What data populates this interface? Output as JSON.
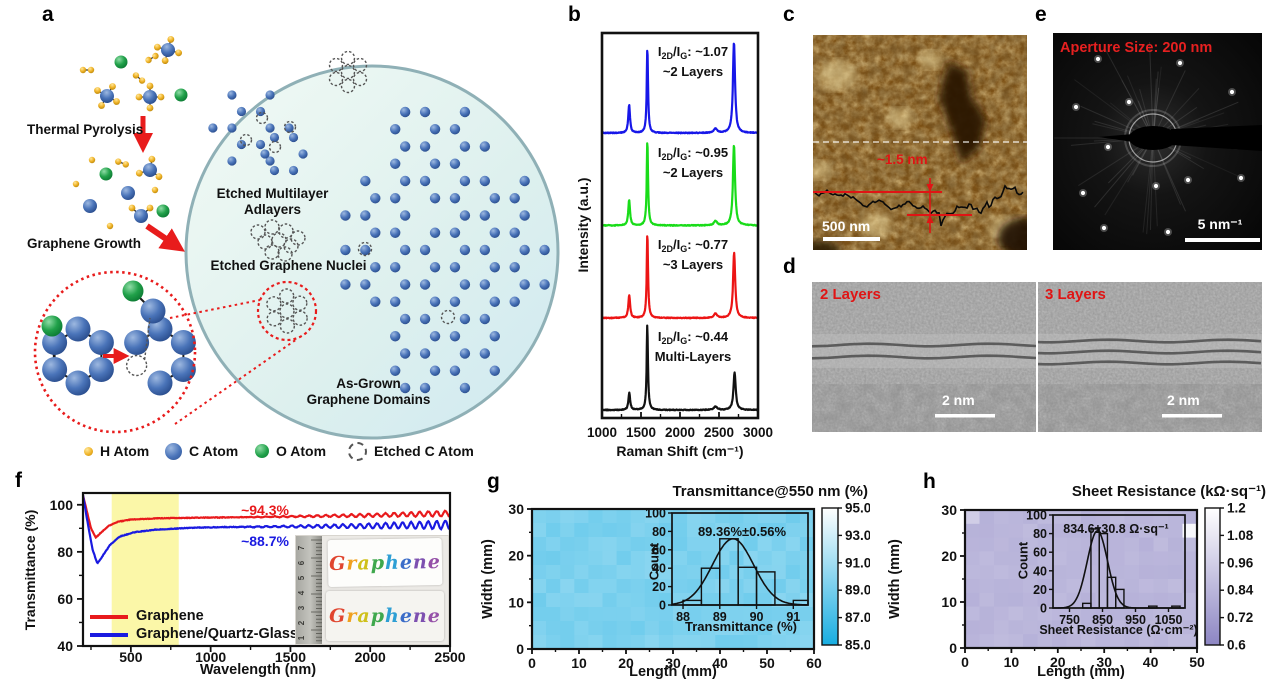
{
  "panels": {
    "a": {
      "label": "a",
      "thermal_pyrolysis": "Thermal Pyrolysis",
      "graphene_growth": "Graphene Growth",
      "etched_multilayer_line1": "Etched Multilayer",
      "etched_multilayer_line2": "Adlayers",
      "etched_nuclei": "Etched Graphene Nuclei",
      "as_grown_line1": "As-Grown",
      "as_grown_line2": "Graphene Domains",
      "legend": [
        {
          "name": "h-atom",
          "label": "H Atom"
        },
        {
          "name": "c-atom",
          "label": "C Atom"
        },
        {
          "name": "o-atom",
          "label": "O Atom"
        },
        {
          "name": "etched-c-atom",
          "label": "Etched C Atom"
        }
      ],
      "colors": {
        "c_atom": "#4a74b9",
        "o_atom": "#21a14a",
        "h_atom": "#f0b429",
        "red_accent": "#e81c1c"
      }
    },
    "b": {
      "label": "b"
    },
    "c": {
      "label": "c",
      "height_annotation": "~1.5 nm",
      "scale_bar": "500 nm"
    },
    "d": {
      "label": "d",
      "left_title": "2 Layers",
      "right_title": "3 Layers",
      "scale_bar_left": "2 nm",
      "scale_bar_right": "2 nm"
    },
    "e": {
      "label": "e",
      "aperture_label": "Aperture Size: 200 nm",
      "scale_bar": "5 nm⁻¹"
    },
    "f": {
      "label": "f",
      "photo": {
        "slide_text": "Graphene",
        "ruler_numbers": [
          "1",
          "2",
          "3",
          "4",
          "5",
          "6",
          "7"
        ],
        "letter_colors": [
          "#e0452f",
          "#f0a01e",
          "#cfc01a",
          "#3fa84d",
          "#2e9fd4",
          "#3a6cc8",
          "#7d50b0",
          "#9550a8"
        ]
      }
    },
    "g": {
      "label": "g"
    },
    "h": {
      "label": "h"
    }
  },
  "chart_data": [
    {
      "id": "raman-spectra",
      "panel": "b",
      "type": "line",
      "xlabel": "Raman Shift (cm⁻¹)",
      "ylabel": "Intensity (a.u.)",
      "xlim": [
        1000,
        3000
      ],
      "xticks": [
        1000,
        1500,
        2000,
        2500,
        3000
      ],
      "label_parts": {
        "i": "I",
        "sub_2d": "2D",
        "slash": "/I",
        "sub_g": "G",
        "colon": ": "
      },
      "series": [
        {
          "name": "2-layers-blue",
          "color": "#1717e8",
          "ratio": "~1.07",
          "layers": "~2 Layers",
          "peaks": [
            [
              1348,
              0.33,
              13
            ],
            [
              1582,
              1.0,
              10
            ],
            [
              2455,
              0.05,
              25
            ],
            [
              2692,
              1.07,
              16
            ]
          ]
        },
        {
          "name": "2-layers-green",
          "color": "#19dc19",
          "ratio": "~0.95",
          "layers": "~2 Layers",
          "peaks": [
            [
              1348,
              0.3,
              13
            ],
            [
              1582,
              1.0,
              10
            ],
            [
              2455,
              0.05,
              25
            ],
            [
              2692,
              0.95,
              16
            ]
          ]
        },
        {
          "name": "3-layers-red",
          "color": "#ec1515",
          "ratio": "~0.77",
          "layers": "~3 Layers",
          "peaks": [
            [
              1349,
              0.27,
              13
            ],
            [
              1582,
              1.0,
              10
            ],
            [
              2455,
              0.05,
              25
            ],
            [
              2694,
              0.77,
              16
            ]
          ]
        },
        {
          "name": "multi-layers-black",
          "color": "#121212",
          "ratio": "~0.44",
          "layers": "Multi-Layers",
          "peaks": [
            [
              1350,
              0.2,
              13
            ],
            [
              1581,
              1.0,
              10
            ],
            [
              2455,
              0.04,
              25
            ],
            [
              2700,
              0.44,
              17
            ]
          ]
        }
      ]
    },
    {
      "id": "uv-vis-transmittance",
      "panel": "f",
      "type": "line",
      "xlabel": "Wavelength (nm)",
      "ylabel": "Transmittance (%)",
      "xlim": [
        200,
        2500
      ],
      "ylim": [
        40,
        105
      ],
      "xticks": [
        500,
        1000,
        1500,
        2000,
        2500
      ],
      "yticks": [
        100,
        80,
        60,
        40
      ],
      "visible_band_nm": [
        380,
        800
      ],
      "series": [
        {
          "name": "Graphene",
          "color": "#e81a1c",
          "value_label": "~94.3%",
          "ripple": 1.2,
          "points": [
            [
              200,
              104
            ],
            [
              225,
              97
            ],
            [
              250,
              90
            ],
            [
              280,
              86
            ],
            [
              310,
              88
            ],
            [
              360,
              91
            ],
            [
              420,
              92.8
            ],
            [
              500,
              93.7
            ],
            [
              650,
              94.2
            ],
            [
              900,
              94.5
            ],
            [
              1200,
              94.7
            ],
            [
              1600,
              95.1
            ],
            [
              2000,
              95.5
            ],
            [
              2300,
              96.0
            ],
            [
              2500,
              96.3
            ]
          ]
        },
        {
          "name": "Graphene/Quartz-Glass",
          "color": "#1a1ae0",
          "value_label": "~88.7%",
          "ripple": 1.8,
          "points": [
            [
              200,
              104
            ],
            [
              230,
              92
            ],
            [
              260,
              81
            ],
            [
              290,
              75
            ],
            [
              320,
              78
            ],
            [
              370,
              83
            ],
            [
              430,
              86.5
            ],
            [
              520,
              88.3
            ],
            [
              650,
              89.4
            ],
            [
              900,
              90.3
            ],
            [
              1200,
              90.6
            ],
            [
              1600,
              90.8
            ],
            [
              2000,
              91.0
            ],
            [
              2300,
              91.3
            ],
            [
              2500,
              91.5
            ]
          ]
        }
      ]
    },
    {
      "id": "transmittance-map",
      "panel": "g",
      "type": "heatmap",
      "title": "Transmittance@550 nm (%)",
      "xlabel": "Length (mm)",
      "ylabel": "Width (mm)",
      "xlim": [
        0,
        60
      ],
      "ylim": [
        0,
        30
      ],
      "xticks": [
        0,
        10,
        20,
        30,
        40,
        50,
        60
      ],
      "yticks": [
        0,
        10,
        20,
        30
      ],
      "grid": {
        "cols": 20,
        "rows": 10
      },
      "mean": 89.36,
      "noise": 1.1,
      "outliers": [],
      "colorbar": {
        "min": 85,
        "max": 95,
        "tick_labels": [
          "95.00",
          "93.00",
          "91.00",
          "89.00",
          "87.00",
          "85.00"
        ],
        "low_color": "#18ade1",
        "high_color": "#ffffff"
      },
      "inset": {
        "stat_label": "89.36%±0.56%",
        "xlabel": "Transmittance (%)",
        "ylabel": "Count",
        "xlim": [
          87.7,
          91.4
        ],
        "ylim": [
          0,
          100
        ],
        "xticks": [
          88,
          89,
          90,
          91
        ],
        "yticks": [
          0,
          20,
          40,
          60,
          80,
          100
        ],
        "bin_width": 0.5,
        "bins": [
          {
            "x": 88.0,
            "count": 5
          },
          {
            "x": 88.5,
            "count": 40
          },
          {
            "x": 89.0,
            "count": 72
          },
          {
            "x": 89.5,
            "count": 41
          },
          {
            "x": 90.0,
            "count": 36
          },
          {
            "x": 91.0,
            "count": 5
          }
        ],
        "gaussian": {
          "mean": 89.36,
          "sd": 0.56,
          "peak": 72
        }
      }
    },
    {
      "id": "sheet-resistance-map",
      "panel": "h",
      "type": "heatmap",
      "title": "Sheet Resistance (kΩ·sq⁻¹)",
      "xlabel": "Length (mm)",
      "ylabel": "Width (mm)",
      "xlim": [
        0,
        50
      ],
      "ylim": [
        0,
        30
      ],
      "xticks": [
        0,
        10,
        20,
        30,
        40,
        50
      ],
      "yticks": [
        0,
        10,
        20,
        30
      ],
      "grid": {
        "cols": 16,
        "rows": 10
      },
      "mean": 0.84,
      "noise": 0.05,
      "outliers": [
        {
          "col": 15,
          "row": 1,
          "value": 1.16
        },
        {
          "col": 0,
          "row": 0,
          "value": 0.95
        }
      ],
      "colorbar": {
        "min": 0.6,
        "max": 1.2,
        "tick_labels": [
          "1.2",
          "1.08",
          "0.96",
          "0.84",
          "0.72",
          "0.6"
        ],
        "low_color": "#8d86c3",
        "high_color": "#ffffff"
      },
      "inset": {
        "stat_label": "834.6±30.8 Ω·sq⁻¹",
        "xlabel": "Sheet Resistance (Ω·cm⁻²)",
        "ylabel": "Count",
        "xlim": [
          700,
          1100
        ],
        "ylim": [
          0,
          100
        ],
        "xticks": [
          750,
          850,
          950,
          1050
        ],
        "yticks": [
          0,
          20,
          40,
          60,
          80,
          100
        ],
        "bin_width": 25,
        "bins": [
          {
            "x": 790,
            "count": 5
          },
          {
            "x": 815,
            "count": 85
          },
          {
            "x": 840,
            "count": 80
          },
          {
            "x": 865,
            "count": 33
          },
          {
            "x": 890,
            "count": 20
          },
          {
            "x": 990,
            "count": 2
          },
          {
            "x": 1060,
            "count": 2
          }
        ],
        "gaussian": {
          "mean": 834.6,
          "sd": 30.8,
          "peak": 83
        }
      }
    }
  ]
}
